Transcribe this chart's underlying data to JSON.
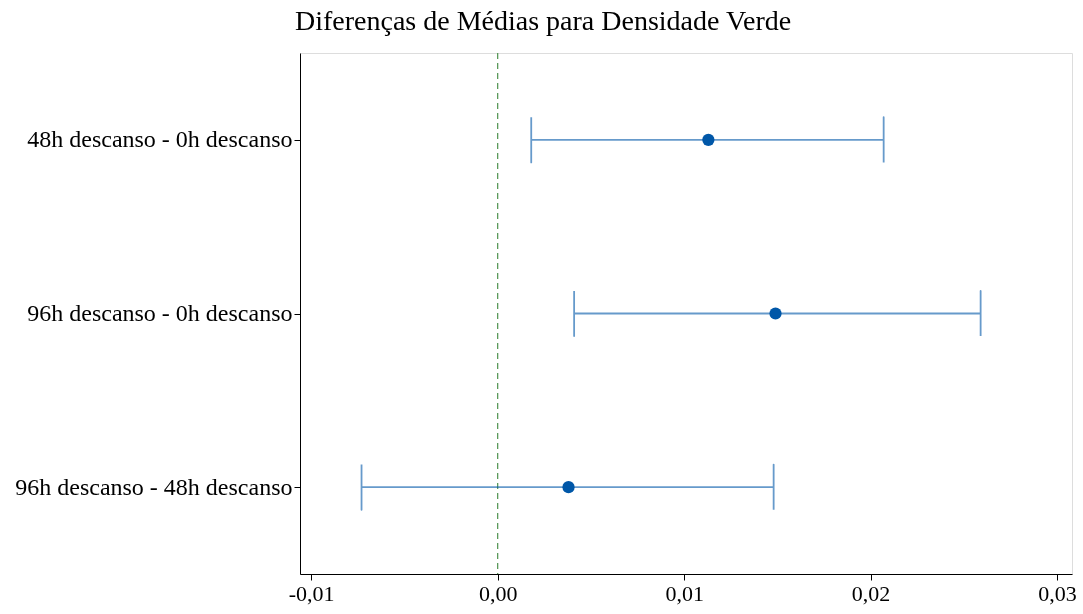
{
  "chart_data": {
    "type": "scatter",
    "title": "Diferenças de Médias para Densidade Verde",
    "orientation": "horizontal",
    "categories": [
      "48h descanso - 0h descanso",
      "96h descanso - 0h descanso",
      "96h descanso - 48h descanso"
    ],
    "series": [
      {
        "color": "#0057a8",
        "values": [
          0.0113,
          0.0149,
          0.0038
        ],
        "errors": [
          [
            0.0018,
            0.0207
          ],
          [
            0.0041,
            0.0259
          ],
          [
            -0.0073,
            0.0148
          ]
        ]
      }
    ],
    "xlim": [
      -0.0106,
      0.0308
    ],
    "xticks": [
      {
        "value": -0.01,
        "label": "-0,01"
      },
      {
        "value": 0,
        "label": "0,00"
      },
      {
        "value": 0.01,
        "label": "0,01"
      },
      {
        "value": 0.02,
        "label": "0,02"
      },
      {
        "value": 0.03,
        "label": "0,03"
      }
    ],
    "ref_lines": [
      {
        "axis": "x",
        "value": 0,
        "color": "#5a9a5a",
        "line_style": "dashed"
      }
    ],
    "marker": "circle",
    "grid": false,
    "legend": false
  }
}
